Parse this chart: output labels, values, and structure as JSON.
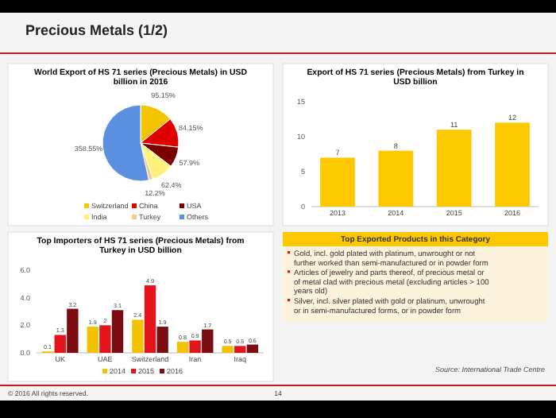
{
  "chart_data": [
    {
      "type": "other",
      "title": "Precious Metals (1/2)"
    },
    {
      "type": "pie",
      "title": "World Export of HS 71 series (Precious Metals) in USD billion in 2016",
      "categories": [
        "Switzerland",
        "China",
        "USA",
        "India",
        "Turkey",
        "Others"
      ],
      "values": [
        95.15,
        84.15,
        57.9,
        62.4,
        12.2,
        358.55
      ],
      "colors": [
        "#f5c400",
        "#e00000",
        "#7b0000",
        "#fff27a",
        "#f7c98f",
        "#5b8fe0"
      ],
      "value_labels": [
        "95.15%",
        "84.15%",
        "57.9%",
        "62.4%",
        "12.2%",
        "358.55%"
      ],
      "legend": "bottom"
    },
    {
      "type": "bar",
      "title": "Export of HS 71 series (Precious Metals) from Turkey in USD billion",
      "categories": [
        "2013",
        "2014",
        "2015",
        "2016"
      ],
      "values": [
        7,
        8,
        11,
        12
      ],
      "color": "#fcc800",
      "ylim": [
        0,
        15
      ],
      "yticks": [
        0,
        5,
        10,
        15
      ],
      "data_labels": true
    },
    {
      "type": "bar",
      "title": "Top Importers of HS 71 series (Precious Metals) from Turkey in USD billion",
      "categories": [
        "UK",
        "UAE",
        "Switzerland",
        "Iran",
        "Iraq"
      ],
      "series": [
        {
          "name": "2014",
          "color": "#f2c200",
          "values": [
            0.1,
            1.9,
            2.4,
            0.8,
            0.5
          ]
        },
        {
          "name": "2015",
          "color": "#e3141c",
          "values": [
            1.3,
            2.0,
            4.9,
            0.9,
            0.5
          ]
        },
        {
          "name": "2016",
          "color": "#7a0c12",
          "values": [
            3.2,
            3.1,
            1.9,
            1.7,
            0.6
          ]
        }
      ],
      "ylim": [
        0,
        6
      ],
      "yticks": [
        {
          "value": 0,
          "label": "0.0"
        },
        {
          "value": 2,
          "label": "2.0"
        },
        {
          "value": 4,
          "label": "4.0"
        },
        {
          "value": 6,
          "label": "6.0"
        }
      ],
      "data_labels": true,
      "legend": "bottom"
    },
    {
      "type": "other",
      "title": "Top Exported Products in this Category",
      "annotations": [
        "Gold, incl. gold plated with platinum, unwrought or not further worked than semi-manufactured or in powder form",
        "Articles of jewelry and parts thereof, of precious metal or of metal clad with precious metal (excluding articles > 100 years old)",
        "Silver, incl. silver plated with gold or platinum, unwrought or in semi-manufactured forms, or in powder form",
        "Source: International Trade Centre",
        "© 2016 All rights reserved.",
        "14"
      ]
    }
  ]
}
